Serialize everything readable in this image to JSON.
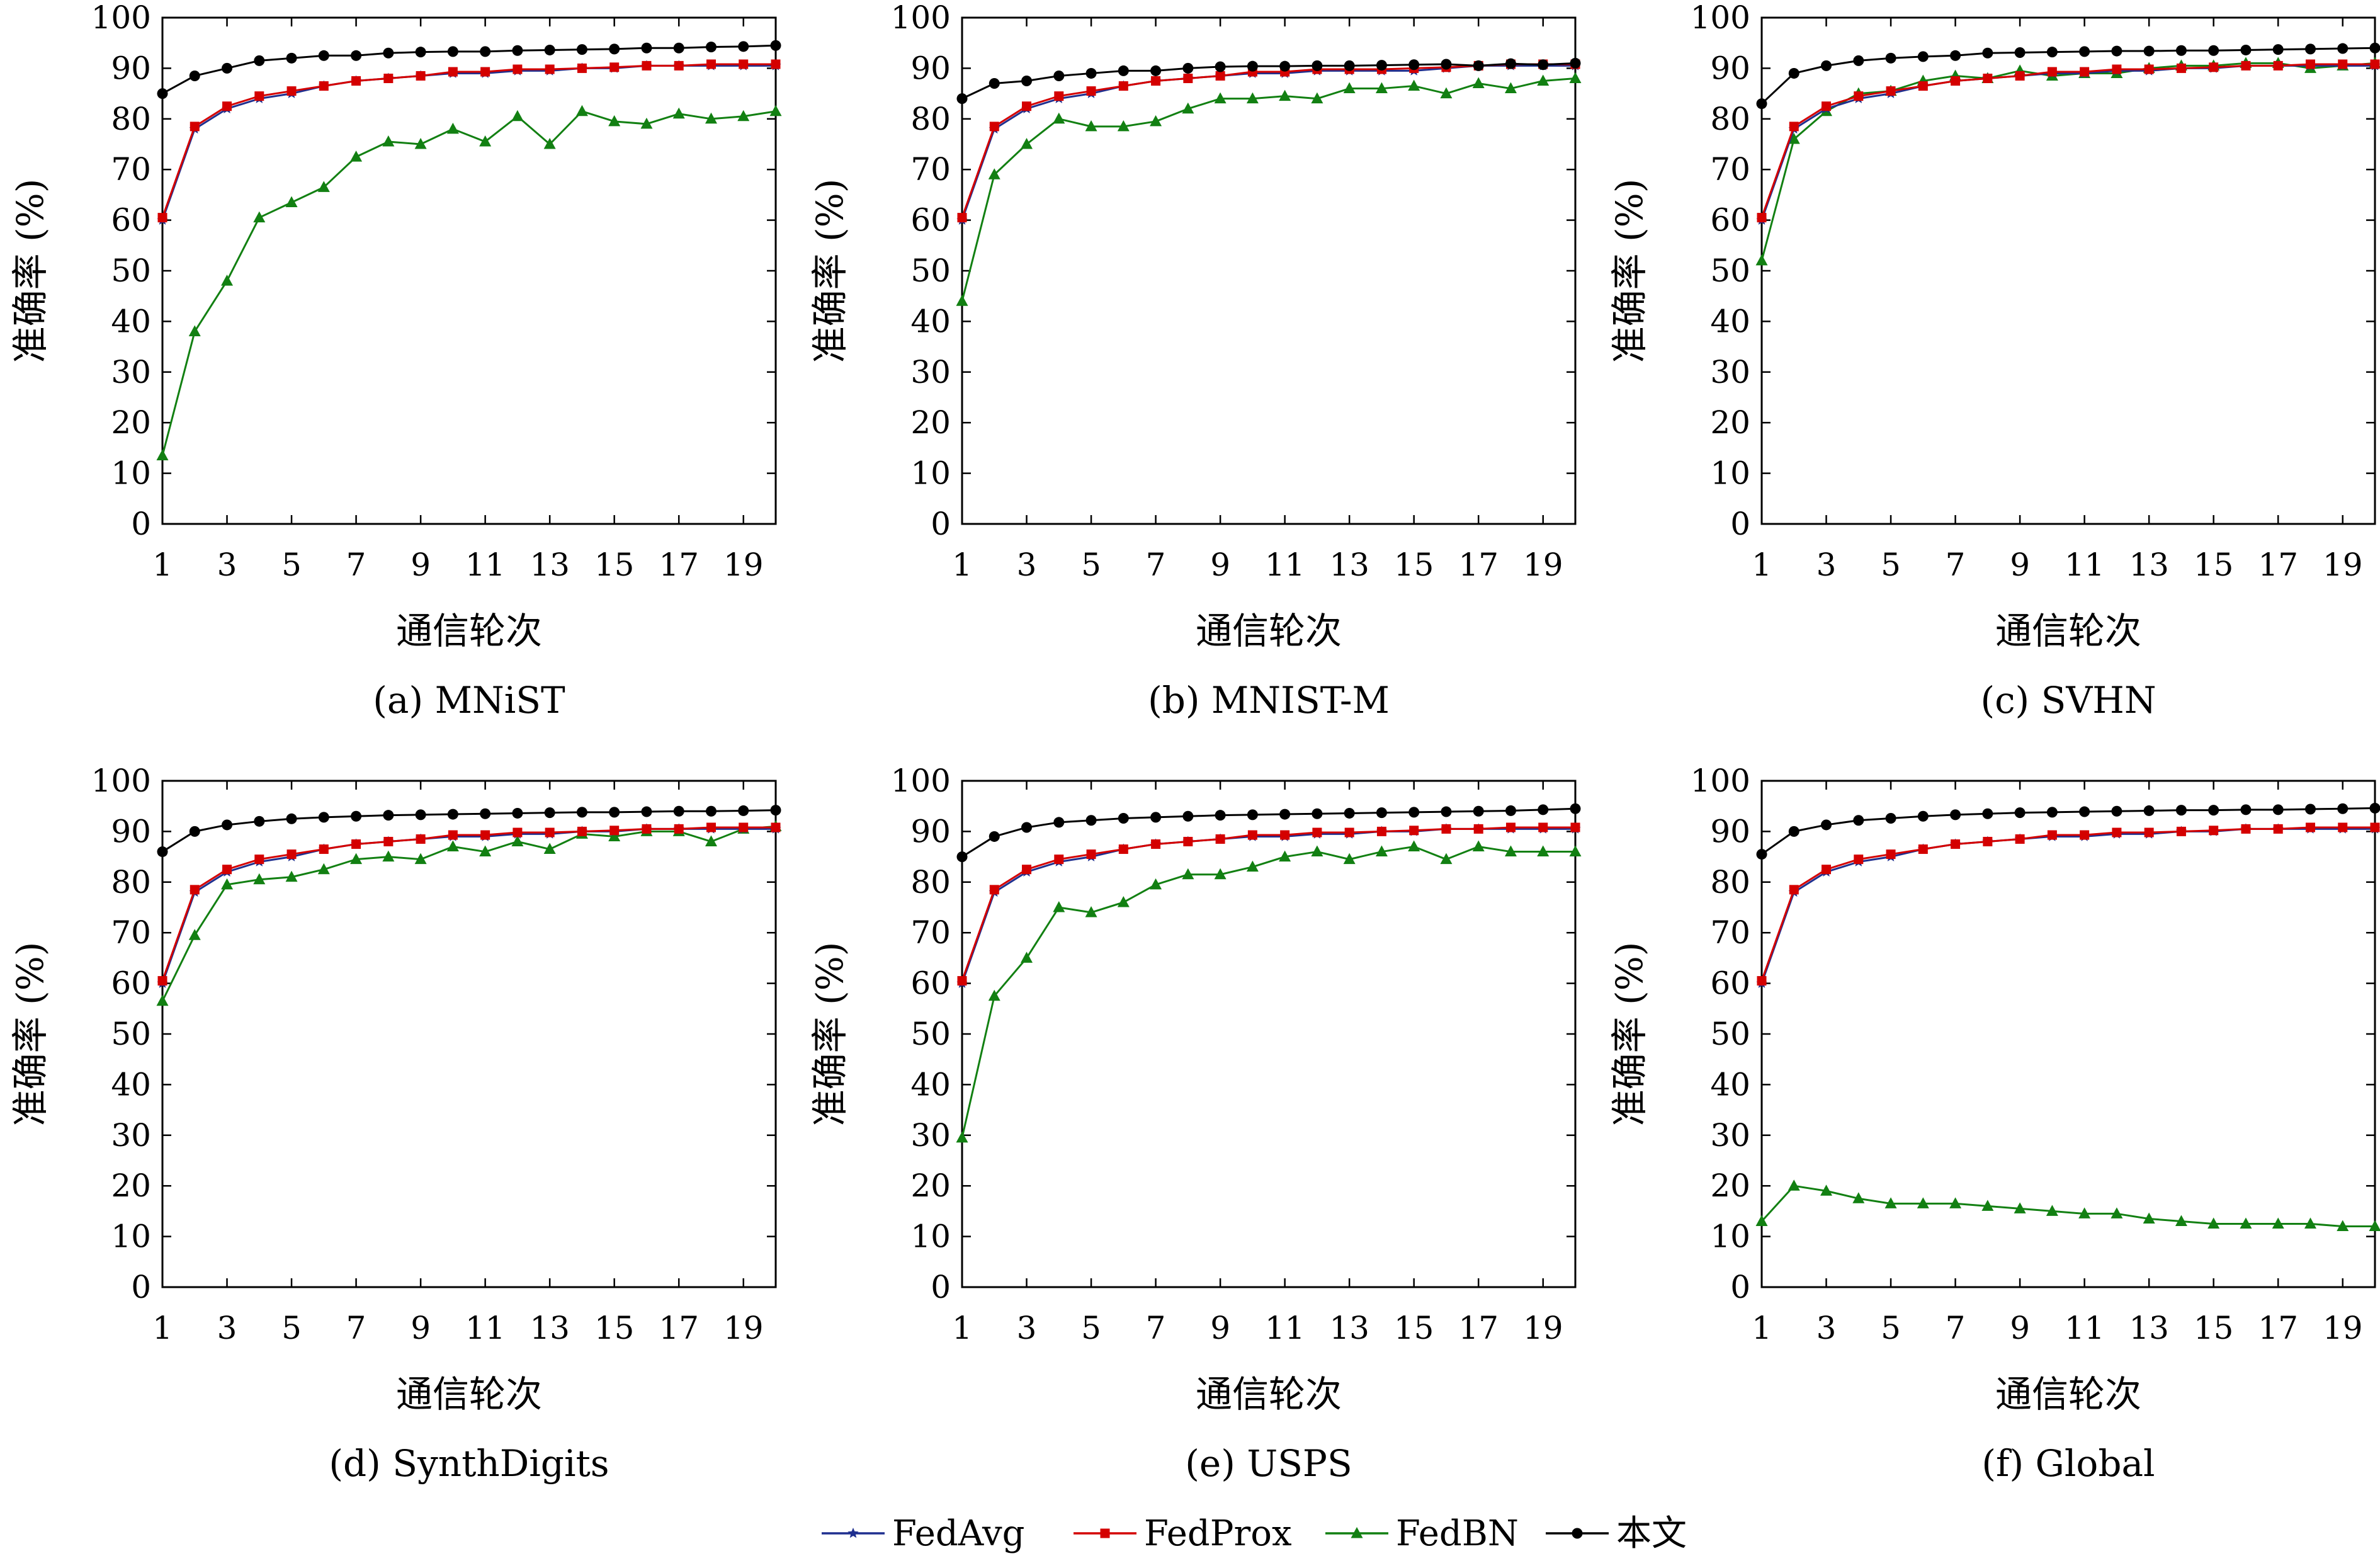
{
  "colors": {
    "FedAvg": "#1f2f8f",
    "FedProx": "#d40000",
    "FedBN": "#128012",
    "本文": "#000000"
  },
  "chart_data": [
    {
      "type": "line",
      "caption": "(a) MNiST",
      "xlabel": "通信轮次",
      "ylabel": "准确率 (%)",
      "xlim": [
        1,
        20
      ],
      "ylim": [
        0,
        100
      ],
      "xticks": [
        1,
        3,
        5,
        7,
        9,
        11,
        13,
        15,
        17,
        19
      ],
      "yticks": [
        0,
        10,
        20,
        30,
        40,
        50,
        60,
        70,
        80,
        90,
        100
      ],
      "x": [
        1,
        2,
        3,
        4,
        5,
        6,
        7,
        8,
        9,
        10,
        11,
        12,
        13,
        14,
        15,
        16,
        17,
        18,
        19,
        20
      ],
      "series": [
        {
          "name": "FedAvg",
          "values": [
            60,
            78,
            82,
            84,
            85,
            86.5,
            87.5,
            88,
            88.5,
            89,
            89,
            89.5,
            89.5,
            90,
            90,
            90.5,
            90.5,
            90.5,
            90.5,
            90.5
          ]
        },
        {
          "name": "FedProx",
          "values": [
            60.5,
            78.5,
            82.5,
            84.5,
            85.5,
            86.5,
            87.5,
            88,
            88.5,
            89.3,
            89.3,
            89.8,
            89.8,
            90,
            90.2,
            90.5,
            90.5,
            90.8,
            90.8,
            90.8
          ]
        },
        {
          "name": "FedBN",
          "values": [
            13.5,
            38,
            48,
            60.5,
            63.5,
            66.5,
            72.5,
            75.5,
            75,
            78,
            75.5,
            80.5,
            75,
            81.5,
            79.5,
            79,
            81,
            80,
            80.5,
            81.5
          ]
        },
        {
          "name": "本文",
          "values": [
            85,
            88.5,
            90,
            91.5,
            92,
            92.5,
            92.5,
            93,
            93.2,
            93.3,
            93.3,
            93.5,
            93.6,
            93.7,
            93.8,
            94,
            94,
            94.2,
            94.3,
            94.5
          ]
        }
      ]
    },
    {
      "type": "line",
      "caption": "(b) MNIST-M",
      "xlabel": "通信轮次",
      "ylabel": "准确率 (%)",
      "xlim": [
        1,
        20
      ],
      "ylim": [
        0,
        100
      ],
      "xticks": [
        1,
        3,
        5,
        7,
        9,
        11,
        13,
        15,
        17,
        19
      ],
      "yticks": [
        0,
        10,
        20,
        30,
        40,
        50,
        60,
        70,
        80,
        90,
        100
      ],
      "x": [
        1,
        2,
        3,
        4,
        5,
        6,
        7,
        8,
        9,
        10,
        11,
        12,
        13,
        14,
        15,
        16,
        17,
        18,
        19,
        20
      ],
      "series": [
        {
          "name": "FedAvg",
          "values": [
            60,
            78,
            82,
            84,
            85,
            86.5,
            87.5,
            88,
            88.5,
            89,
            89,
            89.5,
            89.5,
            89.5,
            89.5,
            90,
            90.5,
            90.5,
            90.5,
            90.5
          ]
        },
        {
          "name": "FedProx",
          "values": [
            60.5,
            78.5,
            82.5,
            84.5,
            85.5,
            86.5,
            87.5,
            88,
            88.5,
            89.3,
            89.3,
            89.8,
            89.8,
            89.8,
            90,
            90.2,
            90.5,
            90.8,
            90.8,
            90.8
          ]
        },
        {
          "name": "FedBN",
          "values": [
            44,
            69,
            75,
            80,
            78.5,
            78.5,
            79.5,
            82,
            84,
            84,
            84.5,
            84,
            86,
            86,
            86.5,
            85,
            87,
            86,
            87.5,
            88
          ]
        },
        {
          "name": "本文",
          "values": [
            84,
            87,
            87.5,
            88.5,
            89,
            89.5,
            89.5,
            90,
            90.3,
            90.4,
            90.4,
            90.5,
            90.5,
            90.6,
            90.7,
            90.8,
            90.5,
            90.9,
            90.7,
            91
          ]
        }
      ]
    },
    {
      "type": "line",
      "caption": "(c) SVHN",
      "xlabel": "通信轮次",
      "ylabel": "准确率 (%)",
      "xlim": [
        1,
        20
      ],
      "ylim": [
        0,
        100
      ],
      "xticks": [
        1,
        3,
        5,
        7,
        9,
        11,
        13,
        15,
        17,
        19
      ],
      "yticks": [
        0,
        10,
        20,
        30,
        40,
        50,
        60,
        70,
        80,
        90,
        100
      ],
      "x": [
        1,
        2,
        3,
        4,
        5,
        6,
        7,
        8,
        9,
        10,
        11,
        12,
        13,
        14,
        15,
        16,
        17,
        18,
        19,
        20
      ],
      "series": [
        {
          "name": "FedAvg",
          "values": [
            60,
            78,
            82,
            84,
            85,
            86.5,
            87.5,
            88,
            88.5,
            89,
            89,
            89.5,
            89.5,
            90,
            90,
            90.5,
            90.5,
            90.5,
            90.5,
            90.5
          ]
        },
        {
          "name": "FedProx",
          "values": [
            60.5,
            78.5,
            82.5,
            84.5,
            85.5,
            86.5,
            87.5,
            88,
            88.5,
            89.3,
            89.3,
            89.8,
            89.8,
            90,
            90.2,
            90.5,
            90.5,
            90.8,
            90.8,
            90.8
          ]
        },
        {
          "name": "FedBN",
          "values": [
            52,
            76,
            81.5,
            85,
            85.5,
            87.5,
            88.5,
            88,
            89.5,
            88.5,
            89,
            89,
            90,
            90.5,
            90.5,
            91,
            91,
            90,
            90.5,
            91
          ]
        },
        {
          "name": "本文",
          "values": [
            83,
            89,
            90.5,
            91.5,
            92,
            92.3,
            92.5,
            93,
            93.1,
            93.2,
            93.3,
            93.4,
            93.4,
            93.5,
            93.5,
            93.6,
            93.7,
            93.8,
            93.9,
            94
          ]
        }
      ]
    },
    {
      "type": "line",
      "caption": "(d) SynthDigits",
      "xlabel": "通信轮次",
      "ylabel": "准确率 (%)",
      "xlim": [
        1,
        20
      ],
      "ylim": [
        0,
        100
      ],
      "xticks": [
        1,
        3,
        5,
        7,
        9,
        11,
        13,
        15,
        17,
        19
      ],
      "yticks": [
        0,
        10,
        20,
        30,
        40,
        50,
        60,
        70,
        80,
        90,
        100
      ],
      "x": [
        1,
        2,
        3,
        4,
        5,
        6,
        7,
        8,
        9,
        10,
        11,
        12,
        13,
        14,
        15,
        16,
        17,
        18,
        19,
        20
      ],
      "series": [
        {
          "name": "FedAvg",
          "values": [
            60,
            78,
            82,
            84,
            85,
            86.5,
            87.5,
            88,
            88.5,
            89,
            89,
            89.5,
            89.5,
            90,
            90,
            90.5,
            90.5,
            90.5,
            90.5,
            90.5
          ]
        },
        {
          "name": "FedProx",
          "values": [
            60.5,
            78.5,
            82.5,
            84.5,
            85.5,
            86.5,
            87.5,
            88,
            88.5,
            89.3,
            89.3,
            89.8,
            89.8,
            90,
            90.2,
            90.5,
            90.5,
            90.8,
            90.8,
            90.8
          ]
        },
        {
          "name": "FedBN",
          "values": [
            56.5,
            69.5,
            79.5,
            80.5,
            81,
            82.5,
            84.5,
            85,
            84.5,
            87,
            86,
            88,
            86.5,
            89.5,
            89,
            90,
            90,
            88,
            90.5,
            91
          ]
        },
        {
          "name": "本文",
          "values": [
            86,
            90,
            91.3,
            92,
            92.5,
            92.8,
            93,
            93.2,
            93.3,
            93.4,
            93.5,
            93.6,
            93.7,
            93.8,
            93.8,
            93.9,
            94,
            94,
            94.1,
            94.2
          ]
        }
      ]
    },
    {
      "type": "line",
      "caption": "(e) USPS",
      "xlabel": "通信轮次",
      "ylabel": "准确率 (%)",
      "xlim": [
        1,
        20
      ],
      "ylim": [
        0,
        100
      ],
      "xticks": [
        1,
        3,
        5,
        7,
        9,
        11,
        13,
        15,
        17,
        19
      ],
      "yticks": [
        0,
        10,
        20,
        30,
        40,
        50,
        60,
        70,
        80,
        90,
        100
      ],
      "x": [
        1,
        2,
        3,
        4,
        5,
        6,
        7,
        8,
        9,
        10,
        11,
        12,
        13,
        14,
        15,
        16,
        17,
        18,
        19,
        20
      ],
      "series": [
        {
          "name": "FedAvg",
          "values": [
            60,
            78,
            82,
            84,
            85,
            86.5,
            87.5,
            88,
            88.5,
            89,
            89,
            89.5,
            89.5,
            90,
            90,
            90.5,
            90.5,
            90.5,
            90.5,
            90.5
          ]
        },
        {
          "name": "FedProx",
          "values": [
            60.5,
            78.5,
            82.5,
            84.5,
            85.5,
            86.5,
            87.5,
            88,
            88.5,
            89.3,
            89.3,
            89.8,
            89.8,
            90,
            90.2,
            90.5,
            90.5,
            90.8,
            90.8,
            90.8
          ]
        },
        {
          "name": "FedBN",
          "values": [
            29.5,
            57.5,
            65,
            75,
            74,
            76,
            79.5,
            81.5,
            81.5,
            83,
            85,
            86,
            84.5,
            86,
            87,
            84.5,
            87,
            86,
            86,
            86
          ]
        },
        {
          "name": "本文",
          "values": [
            85,
            89,
            90.8,
            91.8,
            92.2,
            92.6,
            92.8,
            93,
            93.2,
            93.3,
            93.4,
            93.5,
            93.6,
            93.7,
            93.8,
            93.9,
            94,
            94.1,
            94.3,
            94.5
          ]
        }
      ]
    },
    {
      "type": "line",
      "caption": "(f) Global",
      "xlabel": "通信轮次",
      "ylabel": "准确率 (%)",
      "xlim": [
        1,
        20
      ],
      "ylim": [
        0,
        100
      ],
      "xticks": [
        1,
        3,
        5,
        7,
        9,
        11,
        13,
        15,
        17,
        19
      ],
      "yticks": [
        0,
        10,
        20,
        30,
        40,
        50,
        60,
        70,
        80,
        90,
        100
      ],
      "x": [
        1,
        2,
        3,
        4,
        5,
        6,
        7,
        8,
        9,
        10,
        11,
        12,
        13,
        14,
        15,
        16,
        17,
        18,
        19,
        20
      ],
      "series": [
        {
          "name": "FedAvg",
          "values": [
            60,
            78,
            82,
            84,
            85,
            86.5,
            87.5,
            88,
            88.5,
            89,
            89,
            89.5,
            89.5,
            90,
            90,
            90.5,
            90.5,
            90.5,
            90.5,
            90.5
          ]
        },
        {
          "name": "FedProx",
          "values": [
            60.5,
            78.5,
            82.5,
            84.5,
            85.5,
            86.5,
            87.5,
            88,
            88.5,
            89.3,
            89.3,
            89.8,
            89.8,
            90,
            90.2,
            90.5,
            90.5,
            90.8,
            90.8,
            90.8
          ]
        },
        {
          "name": "FedBN",
          "values": [
            13,
            20,
            19,
            17.5,
            16.5,
            16.5,
            16.5,
            16,
            15.5,
            15,
            14.5,
            14.5,
            13.5,
            13,
            12.5,
            12.5,
            12.5,
            12.5,
            12,
            12
          ]
        },
        {
          "name": "本文",
          "values": [
            85.5,
            90,
            91.3,
            92.2,
            92.6,
            93,
            93.3,
            93.5,
            93.7,
            93.8,
            93.9,
            94,
            94.1,
            94.2,
            94.2,
            94.3,
            94.3,
            94.4,
            94.5,
            94.6
          ]
        }
      ]
    }
  ],
  "legend": {
    "placement": "bottom-center",
    "entries": [
      "FedAvg",
      "FedProx",
      "FedBN",
      "本文"
    ]
  }
}
